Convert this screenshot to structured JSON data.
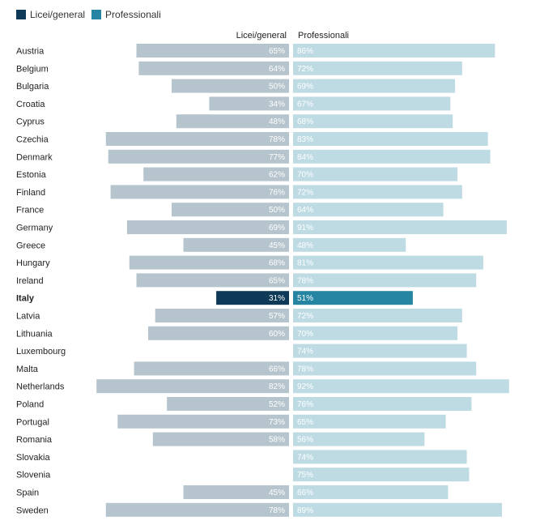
{
  "legend": [
    {
      "label": "Licei/general",
      "color": "#0e3a57"
    },
    {
      "label": "Professionali",
      "color": "#2585a3"
    }
  ],
  "chart_data": {
    "type": "bar",
    "title": "",
    "column_headers": {
      "left": "Licei/general",
      "right": "Professionali"
    },
    "highlight_category": "Italy",
    "colors": {
      "left_default": "#b6c4cd",
      "right_default": "#bedbe4",
      "left_highlight": "#0e3a57",
      "right_highlight": "#2585a3"
    },
    "categories": [
      "Austria",
      "Belgium",
      "Bulgaria",
      "Croatia",
      "Cyprus",
      "Czechia",
      "Denmark",
      "Estonia",
      "Finland",
      "France",
      "Germany",
      "Greece",
      "Hungary",
      "Ireland",
      "Italy",
      "Latvia",
      "Lithuania",
      "Luxembourg",
      "Malta",
      "Netherlands",
      "Poland",
      "Portugal",
      "Romania",
      "Slovakia",
      "Slovenia",
      "Spain",
      "Sweden"
    ],
    "series": [
      {
        "name": "Licei/general",
        "values": [
          65,
          64,
          50,
          34,
          48,
          78,
          77,
          62,
          76,
          50,
          69,
          45,
          68,
          65,
          31,
          57,
          60,
          null,
          66,
          82,
          52,
          73,
          58,
          null,
          null,
          45,
          78
        ]
      },
      {
        "name": "Professionali",
        "values": [
          86,
          72,
          69,
          67,
          68,
          83,
          84,
          70,
          72,
          64,
          91,
          48,
          81,
          78,
          51,
          72,
          70,
          74,
          78,
          92,
          76,
          65,
          56,
          74,
          75,
          66,
          89
        ]
      }
    ],
    "value_suffix": "%"
  }
}
